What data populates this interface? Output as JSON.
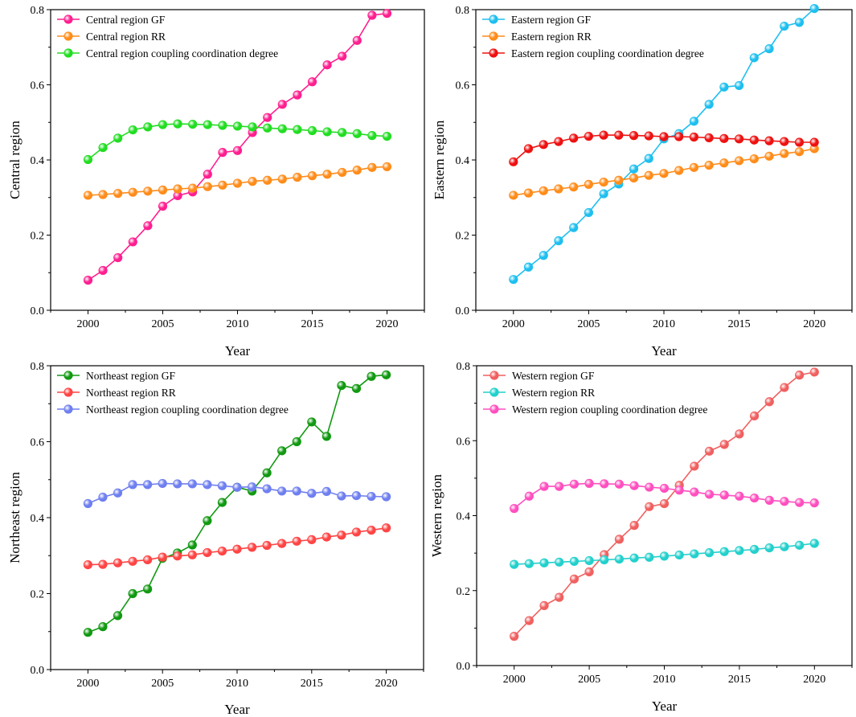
{
  "chart_data": [
    {
      "type": "line",
      "panel": "top-left",
      "xlabel": "Year",
      "ylabel": "Central region",
      "xlim": [
        1997.5,
        2022.5
      ],
      "ylim": [
        0,
        0.8
      ],
      "x_ticks": [
        2000,
        2005,
        2010,
        2015,
        2020
      ],
      "x_tick_labels": [
        "2000",
        "2005",
        "2010",
        "2015",
        "2020"
      ],
      "y_ticks": [
        0,
        0.2,
        0.4,
        0.6,
        0.8
      ],
      "y_tick_labels": [
        "0.0",
        "0.2",
        "0.4",
        "0.6",
        "0.8"
      ],
      "legend_position": "top-left",
      "x": [
        2000,
        2001,
        2002,
        2003,
        2004,
        2005,
        2006,
        2007,
        2008,
        2009,
        2010,
        2011,
        2012,
        2013,
        2014,
        2015,
        2016,
        2017,
        2018,
        2019,
        2020
      ],
      "series": [
        {
          "name": "Central region GF",
          "color": "#ff1f8f",
          "values": [
            0.08,
            0.106,
            0.14,
            0.182,
            0.225,
            0.277,
            0.305,
            0.315,
            0.362,
            0.42,
            0.425,
            0.473,
            0.513,
            0.548,
            0.573,
            0.608,
            0.653,
            0.676,
            0.718,
            0.785,
            0.79
          ]
        },
        {
          "name": "Central region RR",
          "color": "#ff8c1a",
          "values": [
            0.306,
            0.308,
            0.311,
            0.314,
            0.317,
            0.32,
            0.323,
            0.325,
            0.329,
            0.333,
            0.338,
            0.343,
            0.346,
            0.349,
            0.354,
            0.358,
            0.362,
            0.367,
            0.373,
            0.38,
            0.382
          ]
        },
        {
          "name": "Central region coupling coordination degree",
          "color": "#22dd22",
          "values": [
            0.401,
            0.433,
            0.458,
            0.48,
            0.488,
            0.494,
            0.496,
            0.495,
            0.494,
            0.492,
            0.49,
            0.488,
            0.485,
            0.483,
            0.481,
            0.478,
            0.475,
            0.473,
            0.47,
            0.465,
            0.463
          ]
        }
      ]
    },
    {
      "type": "line",
      "panel": "top-right",
      "xlabel": "Year",
      "ylabel": "Eastern region",
      "xlim": [
        1997.5,
        2022.5
      ],
      "ylim": [
        0,
        0.8
      ],
      "x_ticks": [
        2000,
        2005,
        2010,
        2015,
        2020
      ],
      "x_tick_labels": [
        "2000",
        "2005",
        "2010",
        "2015",
        "2020"
      ],
      "y_ticks": [
        0,
        0.2,
        0.4,
        0.6,
        0.8
      ],
      "y_tick_labels": [
        "0.0",
        "0.2",
        "0.4",
        "0.6",
        "0.8"
      ],
      "legend_position": "top-left",
      "x": [
        2000,
        2001,
        2002,
        2003,
        2004,
        2005,
        2006,
        2007,
        2008,
        2009,
        2010,
        2011,
        2012,
        2013,
        2014,
        2015,
        2016,
        2017,
        2018,
        2019,
        2020
      ],
      "series": [
        {
          "name": "Eastern region GF",
          "color": "#1ebfef",
          "values": [
            0.082,
            0.115,
            0.146,
            0.185,
            0.22,
            0.26,
            0.31,
            0.336,
            0.376,
            0.404,
            0.456,
            0.47,
            0.503,
            0.548,
            0.594,
            0.598,
            0.672,
            0.696,
            0.756,
            0.766,
            0.803
          ]
        },
        {
          "name": "Eastern region RR",
          "color": "#ff8c1a",
          "values": [
            0.306,
            0.312,
            0.318,
            0.323,
            0.328,
            0.335,
            0.341,
            0.346,
            0.352,
            0.359,
            0.364,
            0.372,
            0.38,
            0.386,
            0.392,
            0.398,
            0.403,
            0.41,
            0.417,
            0.422,
            0.43
          ]
        },
        {
          "name": "Eastern region coupling coordination degree",
          "color": "#ee1111",
          "values": [
            0.395,
            0.43,
            0.441,
            0.449,
            0.458,
            0.463,
            0.466,
            0.466,
            0.465,
            0.464,
            0.462,
            0.462,
            0.461,
            0.459,
            0.457,
            0.456,
            0.453,
            0.451,
            0.449,
            0.447,
            0.447
          ]
        }
      ]
    },
    {
      "type": "line",
      "panel": "bottom-left",
      "xlabel": "Year",
      "ylabel": "Northeast region",
      "xlim": [
        1997.5,
        2022.5
      ],
      "ylim": [
        0,
        0.8
      ],
      "x_ticks": [
        2000,
        2005,
        2010,
        2015,
        2020
      ],
      "x_tick_labels": [
        "2000",
        "2005",
        "2010",
        "2015",
        "2020"
      ],
      "y_ticks": [
        0,
        0.2,
        0.4,
        0.6,
        0.8
      ],
      "y_tick_labels": [
        "0.0",
        "0.2",
        "0.4",
        "0.6",
        "0.8"
      ],
      "legend_position": "top-left",
      "x": [
        2000,
        2001,
        2002,
        2003,
        2004,
        2005,
        2006,
        2007,
        2008,
        2009,
        2010,
        2011,
        2012,
        2013,
        2014,
        2015,
        2016,
        2017,
        2018,
        2019,
        2020
      ],
      "series": [
        {
          "name": "Northeast region GF",
          "color": "#119911",
          "values": [
            0.098,
            0.113,
            0.142,
            0.2,
            0.212,
            0.293,
            0.307,
            0.328,
            0.392,
            0.44,
            0.48,
            0.47,
            0.518,
            0.576,
            0.6,
            0.652,
            0.614,
            0.748,
            0.74,
            0.772,
            0.776
          ]
        },
        {
          "name": "Northeast region RR",
          "color": "#ff4444",
          "values": [
            0.276,
            0.277,
            0.281,
            0.285,
            0.289,
            0.296,
            0.299,
            0.302,
            0.308,
            0.312,
            0.317,
            0.322,
            0.327,
            0.332,
            0.338,
            0.342,
            0.349,
            0.354,
            0.362,
            0.367,
            0.373
          ]
        },
        {
          "name": "Northeast region coupling coordination degree",
          "color": "#6f7ff0",
          "values": [
            0.437,
            0.454,
            0.465,
            0.487,
            0.487,
            0.49,
            0.489,
            0.489,
            0.487,
            0.484,
            0.48,
            0.481,
            0.476,
            0.47,
            0.47,
            0.464,
            0.469,
            0.457,
            0.458,
            0.456,
            0.455
          ]
        }
      ]
    },
    {
      "type": "line",
      "panel": "bottom-right",
      "xlabel": "Year",
      "ylabel": "Western region",
      "xlim": [
        1997.5,
        2022.5
      ],
      "ylim": [
        0,
        0.8
      ],
      "x_ticks": [
        2000,
        2005,
        2010,
        2015,
        2020
      ],
      "x_tick_labels": [
        "2000",
        "2005",
        "2010",
        "2015",
        "2020"
      ],
      "y_ticks": [
        0,
        0.2,
        0.4,
        0.6,
        0.8
      ],
      "y_tick_labels": [
        "0.0",
        "0.2",
        "0.4",
        "0.6",
        "0.8"
      ],
      "legend_position": "top-left",
      "x": [
        2000,
        2001,
        2002,
        2003,
        2004,
        2005,
        2006,
        2007,
        2008,
        2009,
        2010,
        2011,
        2012,
        2013,
        2014,
        2015,
        2016,
        2017,
        2018,
        2019,
        2020
      ],
      "series": [
        {
          "name": "Western region GF",
          "color": "#f06060",
          "values": [
            0.078,
            0.12,
            0.16,
            0.182,
            0.231,
            0.25,
            0.296,
            0.337,
            0.374,
            0.424,
            0.432,
            0.481,
            0.532,
            0.572,
            0.59,
            0.618,
            0.666,
            0.704,
            0.742,
            0.775,
            0.783
          ]
        },
        {
          "name": "Western region RR",
          "color": "#22d0cc",
          "values": [
            0.27,
            0.272,
            0.274,
            0.276,
            0.278,
            0.28,
            0.282,
            0.284,
            0.287,
            0.289,
            0.292,
            0.295,
            0.298,
            0.301,
            0.304,
            0.307,
            0.31,
            0.314,
            0.317,
            0.321,
            0.326
          ]
        },
        {
          "name": "Western region coupling coordination degree",
          "color": "#ff4fbf",
          "values": [
            0.419,
            0.452,
            0.478,
            0.478,
            0.484,
            0.486,
            0.485,
            0.484,
            0.48,
            0.476,
            0.473,
            0.468,
            0.463,
            0.457,
            0.455,
            0.452,
            0.447,
            0.441,
            0.438,
            0.435,
            0.434
          ]
        }
      ]
    }
  ]
}
